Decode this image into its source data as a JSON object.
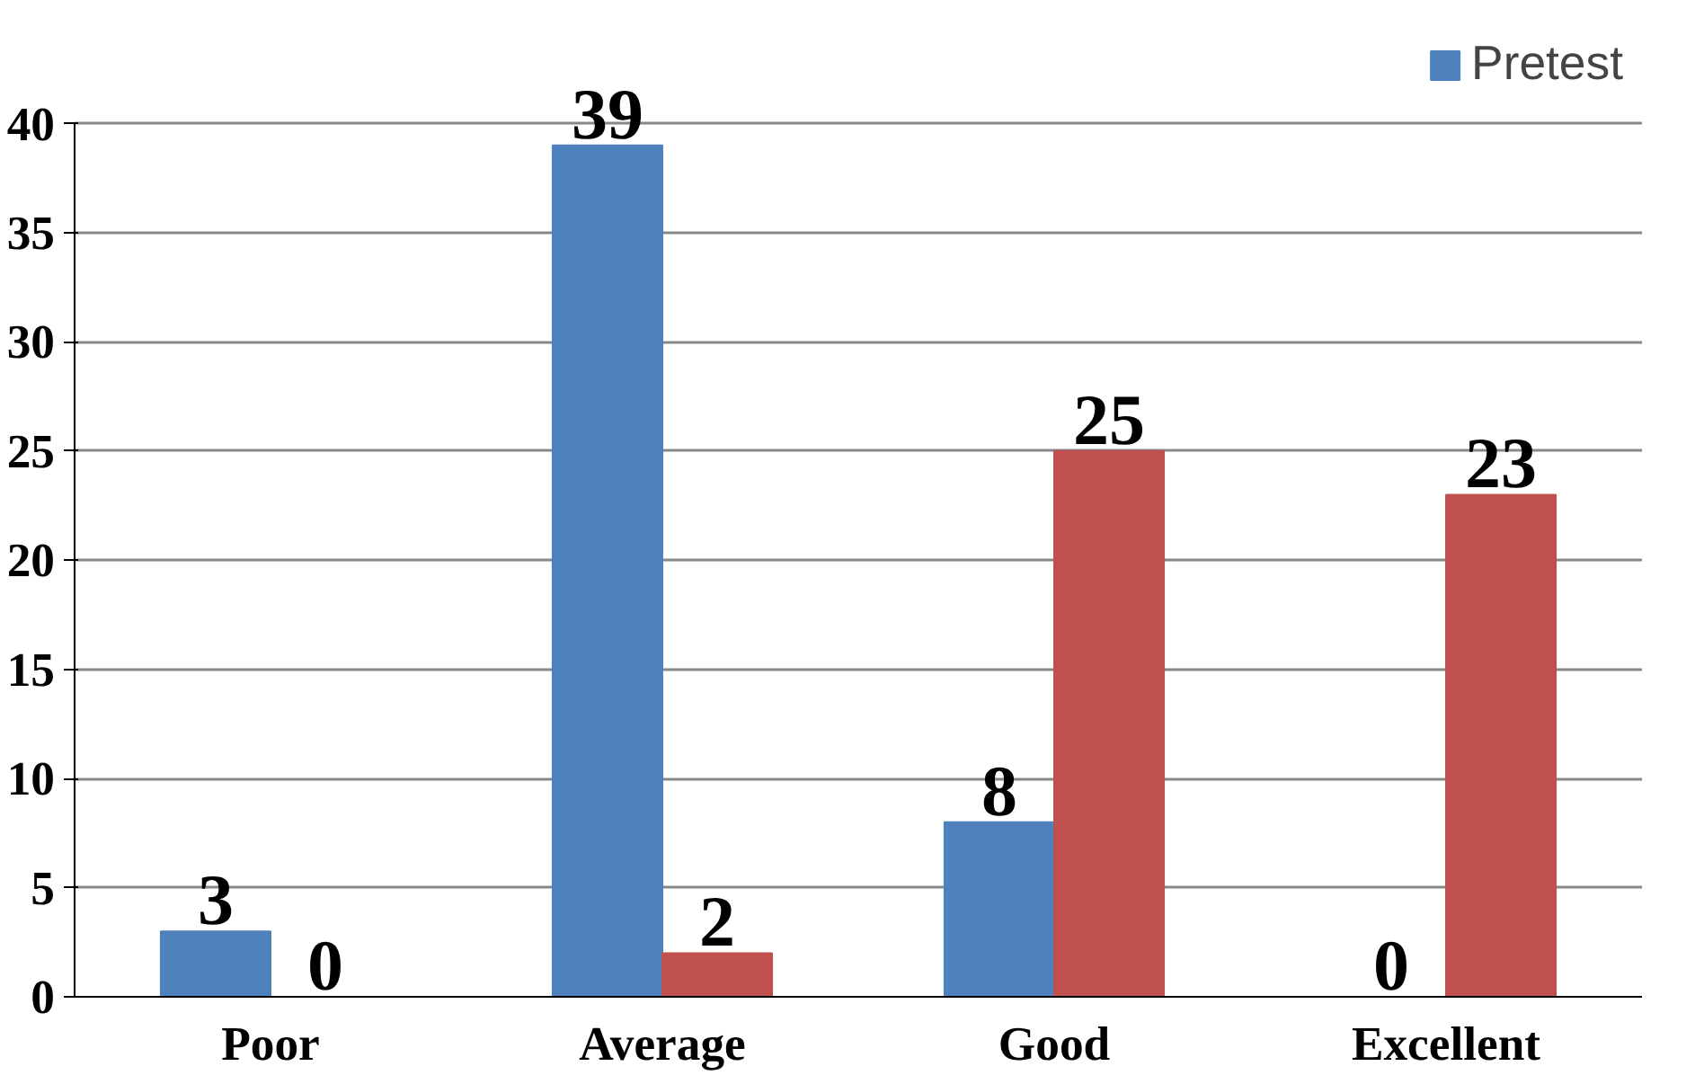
{
  "chart_data": {
    "type": "bar",
    "categories": [
      "Poor",
      "Average",
      "Good",
      "Excellent"
    ],
    "series": [
      {
        "name": "Pretest",
        "color": "#4f81bd",
        "values": [
          3,
          39,
          8,
          0
        ]
      },
      {
        "color": "#c0504d",
        "values": [
          0,
          2,
          25,
          23
        ]
      }
    ],
    "ylim": [
      0,
      40
    ],
    "yticks": [
      0,
      5,
      10,
      15,
      20,
      25,
      30,
      35,
      40
    ],
    "grid": "y",
    "legend": "top right",
    "data_labels": true
  }
}
